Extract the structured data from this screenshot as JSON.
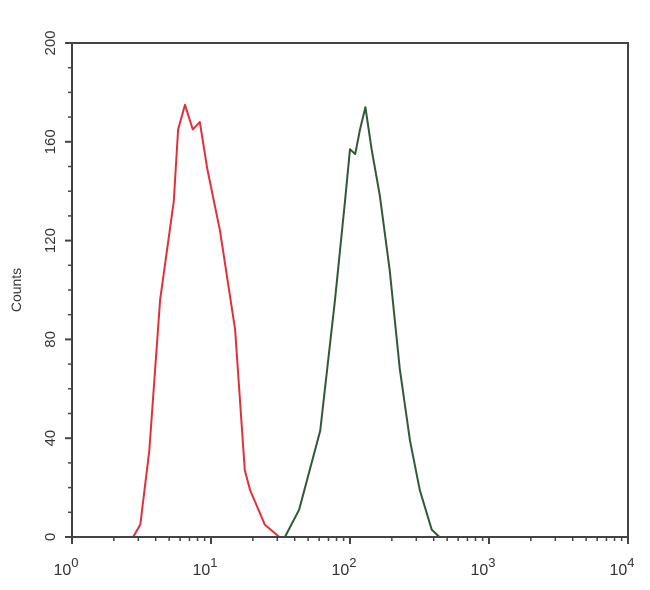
{
  "chart_data": {
    "type": "line",
    "title": "",
    "xlabel": "",
    "ylabel": "Counts",
    "xscale": "log",
    "xlim": [
      1,
      10000
    ],
    "ylim": [
      0,
      200
    ],
    "grid": false,
    "x_ticks": [
      {
        "base": "10",
        "exp": "0"
      },
      {
        "base": "10",
        "exp": "1"
      },
      {
        "base": "10",
        "exp": "2"
      },
      {
        "base": "10",
        "exp": "3"
      },
      {
        "base": "10",
        "exp": "4"
      }
    ],
    "y_ticks": [
      "0",
      "40",
      "80",
      "120",
      "160",
      "200"
    ],
    "series": [
      {
        "color": "#e0303a",
        "x": [
          1,
          2.75,
          3.1,
          3.6,
          4.3,
          5.4,
          5.8,
          6.5,
          7.4,
          8.3,
          9.4,
          11.6,
          14.9,
          17.5,
          19.1,
          24.4,
          31,
          10000
        ],
        "y": [
          0,
          0,
          5,
          35,
          96,
          136,
          165,
          175,
          165,
          168,
          149,
          124,
          84,
          27,
          19,
          5,
          0,
          0
        ]
      },
      {
        "color": "#2e5a36",
        "x": [
          1,
          34,
          43,
          61,
          78,
          92,
          100,
          109,
          118,
          129,
          143,
          164,
          193,
          228,
          270,
          318,
          387,
          440,
          10000
        ],
        "y": [
          0,
          0,
          11,
          43,
          96,
          136,
          157,
          155,
          165,
          174,
          157,
          138,
          108,
          68,
          39,
          19,
          3,
          0,
          0
        ]
      }
    ]
  }
}
